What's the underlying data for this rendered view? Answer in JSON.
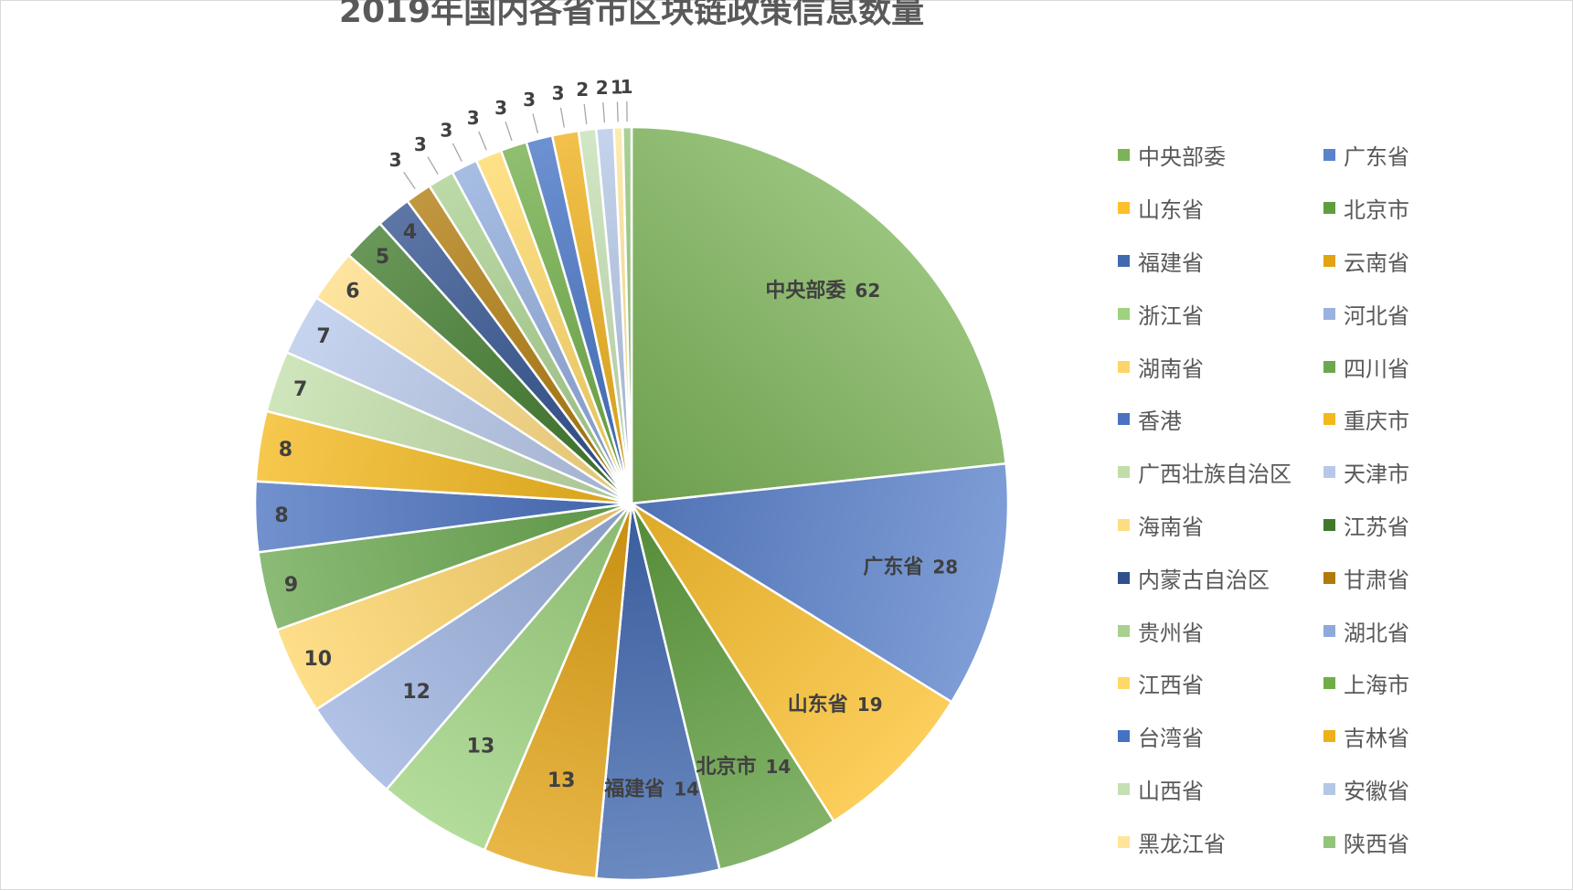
{
  "chart_data": {
    "type": "pie",
    "title": "2019年国内各省市区块链政策信息数量",
    "labels": [
      "中央部委",
      "广东省",
      "山东省",
      "北京市",
      "福建省",
      "云南省",
      "浙江省",
      "河北省",
      "湖南省",
      "四川省",
      "香港",
      "重庆市",
      "广西壮族自治区",
      "天津市",
      "海南省",
      "江苏省",
      "内蒙古自治区",
      "甘肃省",
      "贵州省",
      "湖北省",
      "江西省",
      "上海市",
      "台湾省",
      "吉林省",
      "山西省",
      "安徽省",
      "黑龙江省",
      "陕西省"
    ],
    "values": [
      62,
      28,
      19,
      14,
      14,
      13,
      13,
      12,
      10,
      9,
      8,
      8,
      7,
      7,
      6,
      5,
      4,
      3,
      3,
      3,
      3,
      3,
      3,
      3,
      2,
      2,
      1,
      1
    ],
    "colors": [
      "#7cb358",
      "#5b82cc",
      "#fbc02d",
      "#5f9e3f",
      "#4169b0",
      "#e2a313",
      "#9ed27f",
      "#9bb1df",
      "#fed568",
      "#6aa84f",
      "#4a72c0",
      "#f4b81c",
      "#c1dea8",
      "#b7c8ea",
      "#fedd82",
      "#3f7a2a",
      "#2f4f8d",
      "#b07a0a",
      "#a9d08e",
      "#8eaadb",
      "#ffd966",
      "#70ad47",
      "#4472c4",
      "#eeb01a",
      "#c5e0b4",
      "#b4c7e7",
      "#fee599",
      "#92c47a"
    ],
    "show_name_in_label": [
      true,
      true,
      true,
      true,
      true,
      false,
      false,
      false,
      false,
      false,
      false,
      false,
      false,
      false,
      false,
      false,
      false,
      false,
      false,
      false,
      false,
      false,
      false,
      false,
      false,
      false,
      false,
      false
    ],
    "legend_position": "right",
    "legend_columns": 2
  }
}
